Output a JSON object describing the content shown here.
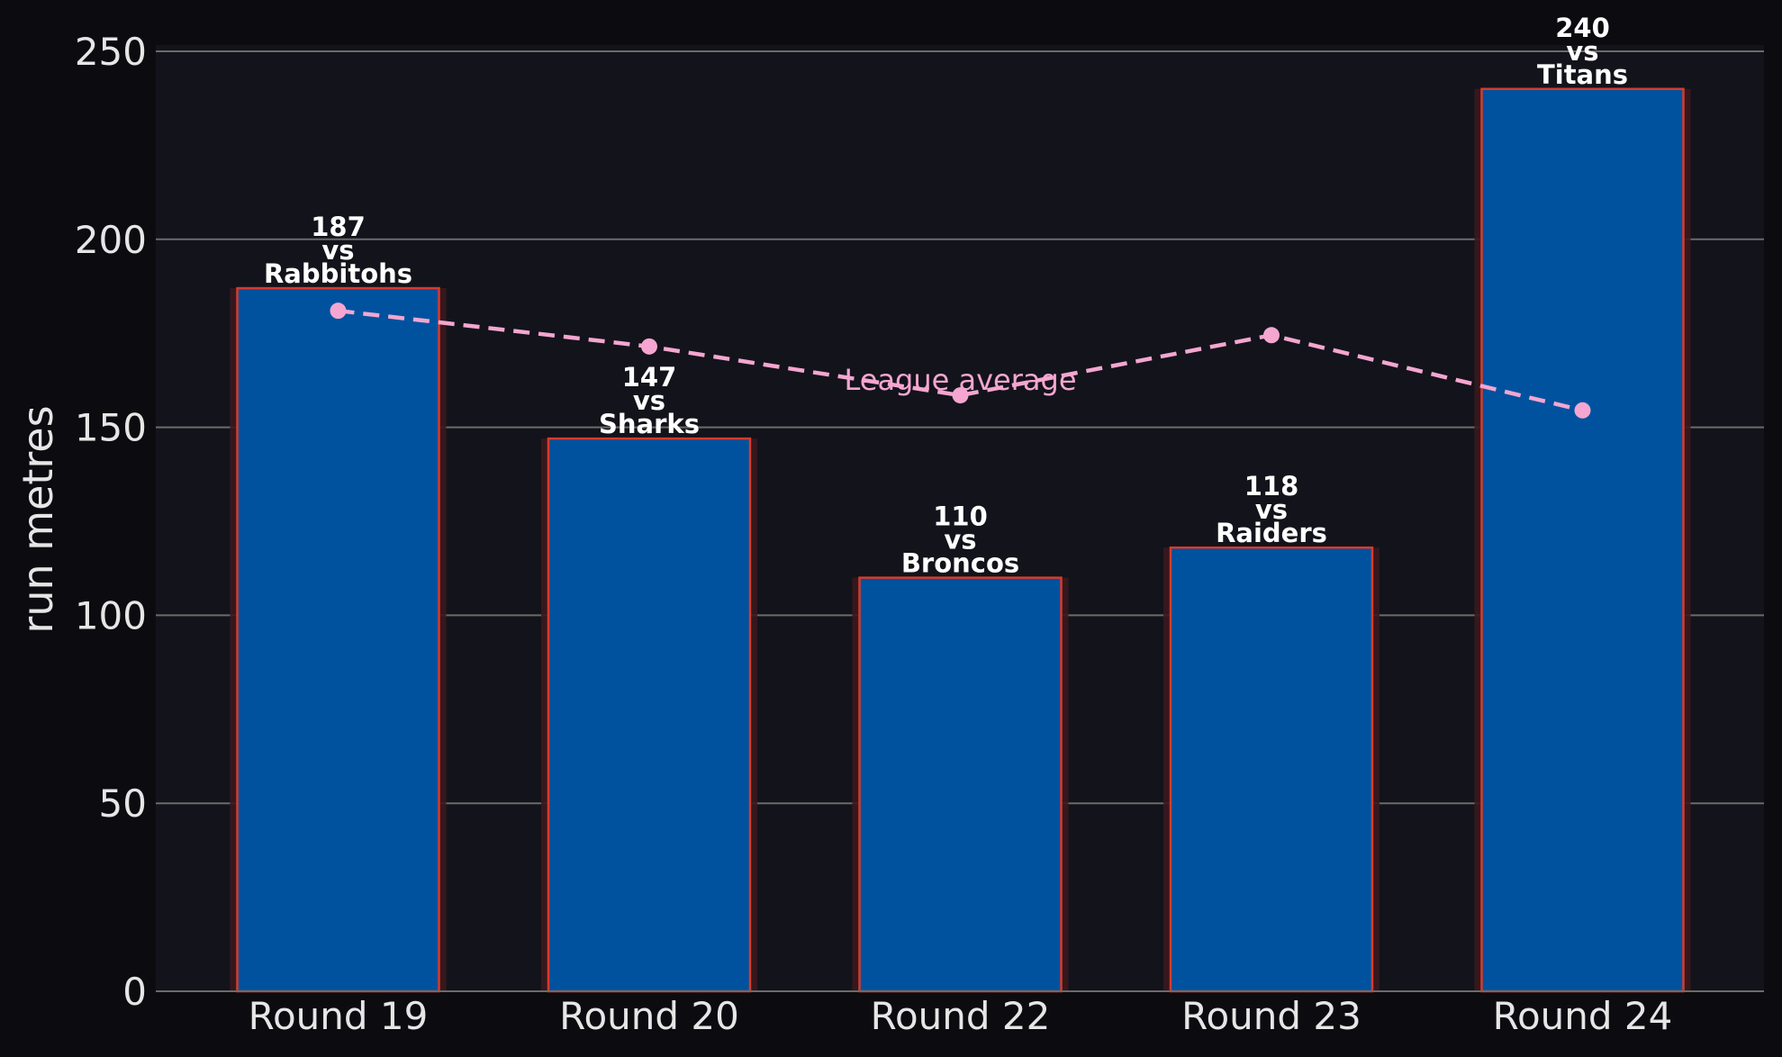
{
  "chart_data": {
    "type": "bar",
    "title": "",
    "xlabel": "",
    "ylabel": "run metres",
    "ylim": [
      0,
      250
    ],
    "yticks": [
      0,
      50,
      100,
      150,
      200,
      250
    ],
    "grid": "horizontal",
    "categories": [
      "Round 19",
      "Round 20",
      "Round 22",
      "Round 23",
      "Round 24"
    ],
    "values": [
      187,
      147,
      110,
      118,
      240
    ],
    "opponents": [
      "Rabbitohs",
      "Sharks",
      "Broncos",
      "Raiders",
      "Titans"
    ],
    "bar_labels": [
      [
        "187",
        "vs",
        "Rabbitohs"
      ],
      [
        "147",
        "vs",
        "Sharks"
      ],
      [
        "110",
        "vs",
        "Broncos"
      ],
      [
        "118",
        "vs",
        "Raiders"
      ],
      [
        "240",
        "vs",
        "Titans"
      ]
    ],
    "average_series": {
      "name": "League average",
      "style": "dashed",
      "values": [
        181,
        171.5,
        158.5,
        174.5,
        154.5
      ]
    },
    "colors": {
      "background": "#0c0c10",
      "plot_background": "#13131b",
      "bar_fill": "#00529f",
      "bar_edge": "#d93a2b",
      "average_line": "#f4a6d0",
      "grid": "#6b6b6b"
    }
  }
}
